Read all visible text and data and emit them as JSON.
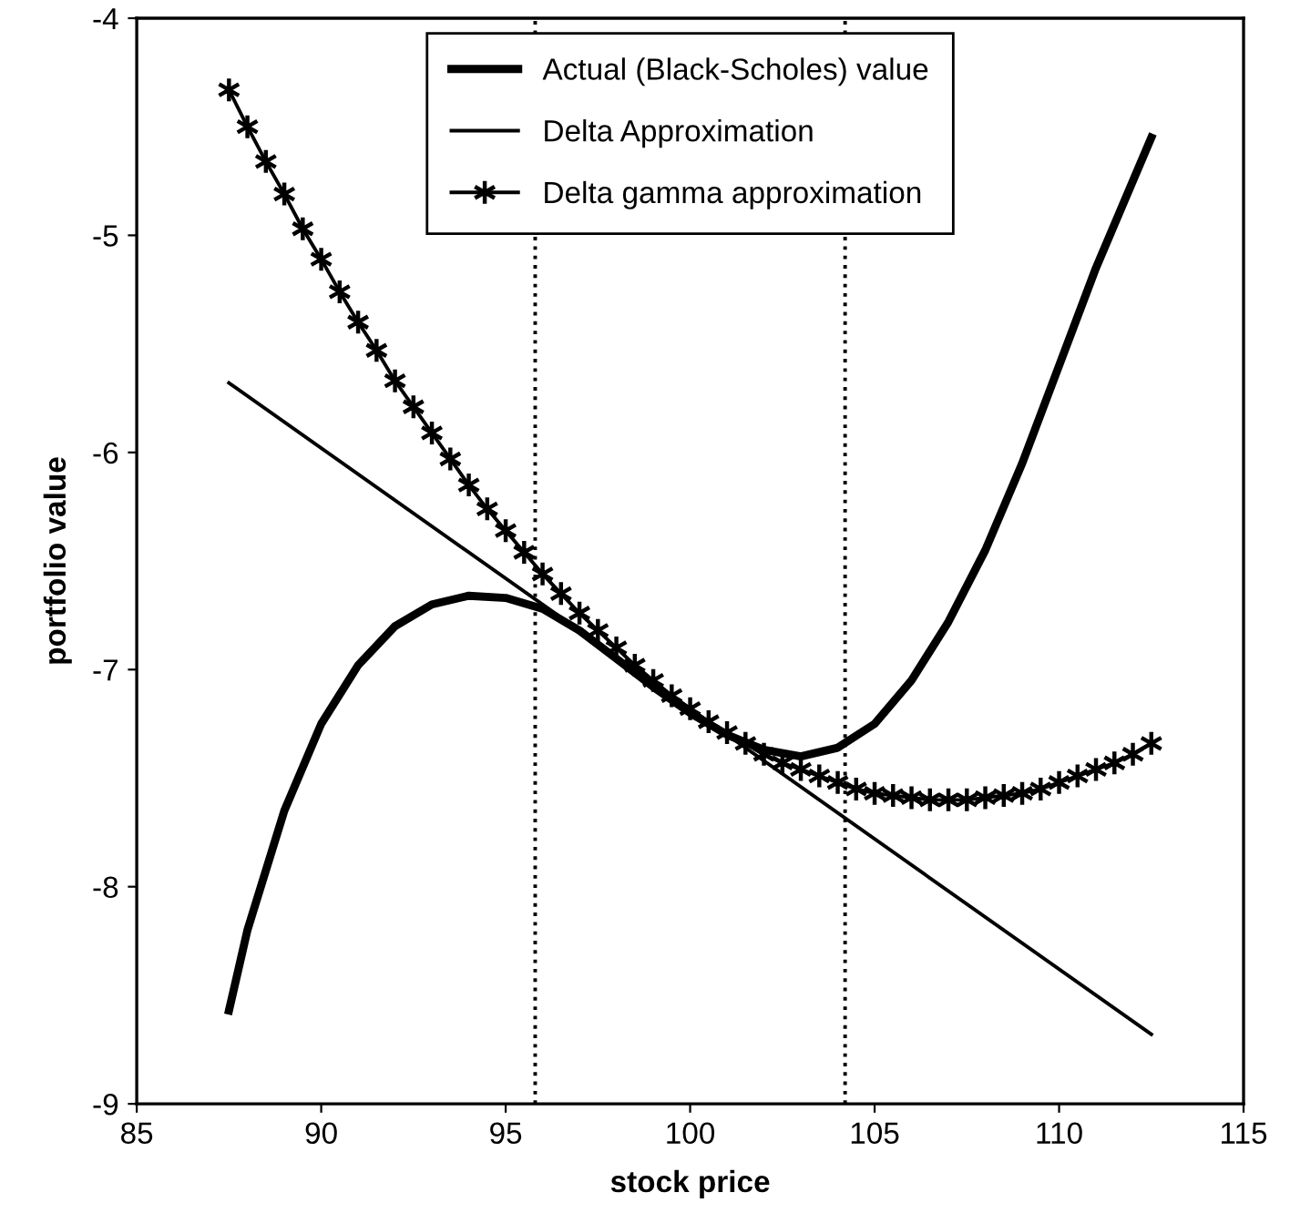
{
  "chart_data": {
    "type": "line",
    "xlabel": "stock price",
    "ylabel": "portfolio value",
    "xlim": [
      85,
      115
    ],
    "xticks": [
      85,
      90,
      95,
      100,
      105,
      110,
      115
    ],
    "ylim": [
      -9,
      -4
    ],
    "yticks": [
      -9,
      -8,
      -7,
      -6,
      -5,
      -4
    ],
    "grid": false,
    "legend": "top",
    "ref_lines": [
      {
        "axis": "x",
        "value": 95.8,
        "color": "#000000",
        "line_style": "dotted"
      },
      {
        "axis": "x",
        "value": 104.2,
        "color": "#000000",
        "line_style": "dotted"
      }
    ],
    "series": [
      {
        "name": "Actual (Black-Scholes) value",
        "color": "#000000",
        "marker": "none",
        "line_style": "solid",
        "x": [
          87.5,
          88,
          89,
          90,
          91,
          92,
          93,
          94,
          95,
          96,
          97,
          98,
          99,
          100,
          101,
          102,
          103,
          104,
          105,
          106,
          107,
          108,
          109,
          110,
          111,
          112,
          112.5
        ],
        "values": [
          -8.57,
          -8.2,
          -7.65,
          -7.25,
          -6.98,
          -6.8,
          -6.7,
          -6.66,
          -6.67,
          -6.72,
          -6.82,
          -6.95,
          -7.08,
          -7.2,
          -7.3,
          -7.37,
          -7.4,
          -7.36,
          -7.25,
          -7.05,
          -6.78,
          -6.45,
          -6.05,
          -5.6,
          -5.15,
          -4.75,
          -4.55
        ]
      },
      {
        "name": "Delta Approximation",
        "color": "#000000",
        "marker": "none",
        "line_style": "solid",
        "x": [
          87.5,
          112.5
        ],
        "values": [
          -5.68,
          -8.68
        ]
      },
      {
        "name": "Delta gamma approximation",
        "color": "#000000",
        "marker": "cross",
        "line_style": "solid",
        "x": [
          87.5,
          88,
          88.5,
          89,
          89.5,
          90,
          90.5,
          91,
          91.5,
          92,
          92.5,
          93,
          93.5,
          94,
          94.5,
          95,
          95.5,
          96,
          96.5,
          97,
          97.5,
          98,
          98.5,
          99,
          99.5,
          100,
          100.5,
          101,
          101.5,
          102,
          102.5,
          103,
          103.5,
          104,
          104.5,
          105,
          105.5,
          106,
          106.5,
          107,
          107.5,
          108,
          108.5,
          109,
          109.5,
          110,
          110.5,
          111,
          111.5,
          112,
          112.5
        ],
        "values": [
          -4.33,
          -4.5,
          -4.66,
          -4.81,
          -4.97,
          -5.11,
          -5.26,
          -5.4,
          -5.53,
          -5.67,
          -5.79,
          -5.91,
          -6.03,
          -6.15,
          -6.26,
          -6.36,
          -6.46,
          -6.56,
          -6.65,
          -6.74,
          -6.82,
          -6.9,
          -6.98,
          -7.05,
          -7.12,
          -7.18,
          -7.24,
          -7.29,
          -7.34,
          -7.39,
          -7.43,
          -7.46,
          -7.49,
          -7.52,
          -7.55,
          -7.57,
          -7.58,
          -7.59,
          -7.6,
          -7.6,
          -7.6,
          -7.59,
          -7.58,
          -7.57,
          -7.55,
          -7.52,
          -7.49,
          -7.46,
          -7.43,
          -7.39,
          -7.34
        ]
      }
    ]
  }
}
